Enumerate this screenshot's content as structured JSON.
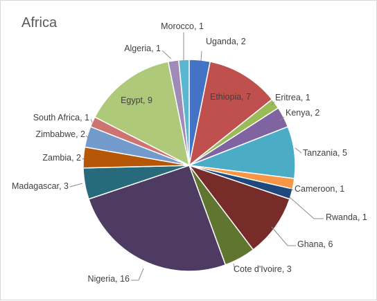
{
  "chart_data": {
    "type": "pie",
    "title": "Africa",
    "slices": [
      {
        "label": "Uganda",
        "value": 2,
        "color": "#4472c4"
      },
      {
        "label": "Ethiopia",
        "value": 7,
        "color": "#c0504d"
      },
      {
        "label": "Eritrea",
        "value": 1,
        "color": "#9bbb59"
      },
      {
        "label": "Kenya",
        "value": 2,
        "color": "#8064a2"
      },
      {
        "label": "Tanzania",
        "value": 5,
        "color": "#4bacc6"
      },
      {
        "label": "Cameroon",
        "value": 1,
        "color": "#f79646"
      },
      {
        "label": "Rwanda",
        "value": 1,
        "color": "#1f497d"
      },
      {
        "label": "Ghana",
        "value": 6,
        "color": "#772c2a"
      },
      {
        "label": "Cote d'Ivoire",
        "value": 3,
        "color": "#5f7530"
      },
      {
        "label": "Nigeria",
        "value": 16,
        "color": "#4d3b62"
      },
      {
        "label": "Madagascar",
        "value": 3,
        "color": "#276a7c"
      },
      {
        "label": "Zambia",
        "value": 2,
        "color": "#b65708"
      },
      {
        "label": "Zimbabwe",
        "value": 2,
        "color": "#729aca"
      },
      {
        "label": "South Africa",
        "value": 1,
        "color": "#cd7371"
      },
      {
        "label": "Egypt",
        "value": 9,
        "color": "#afc97a"
      },
      {
        "label": "Algeria",
        "value": 1,
        "color": "#a08ab7"
      },
      {
        "label": "Morocco",
        "value": 1,
        "color": "#5bb7d0"
      }
    ],
    "label_format": "{label}, {value}",
    "legend": "none"
  }
}
